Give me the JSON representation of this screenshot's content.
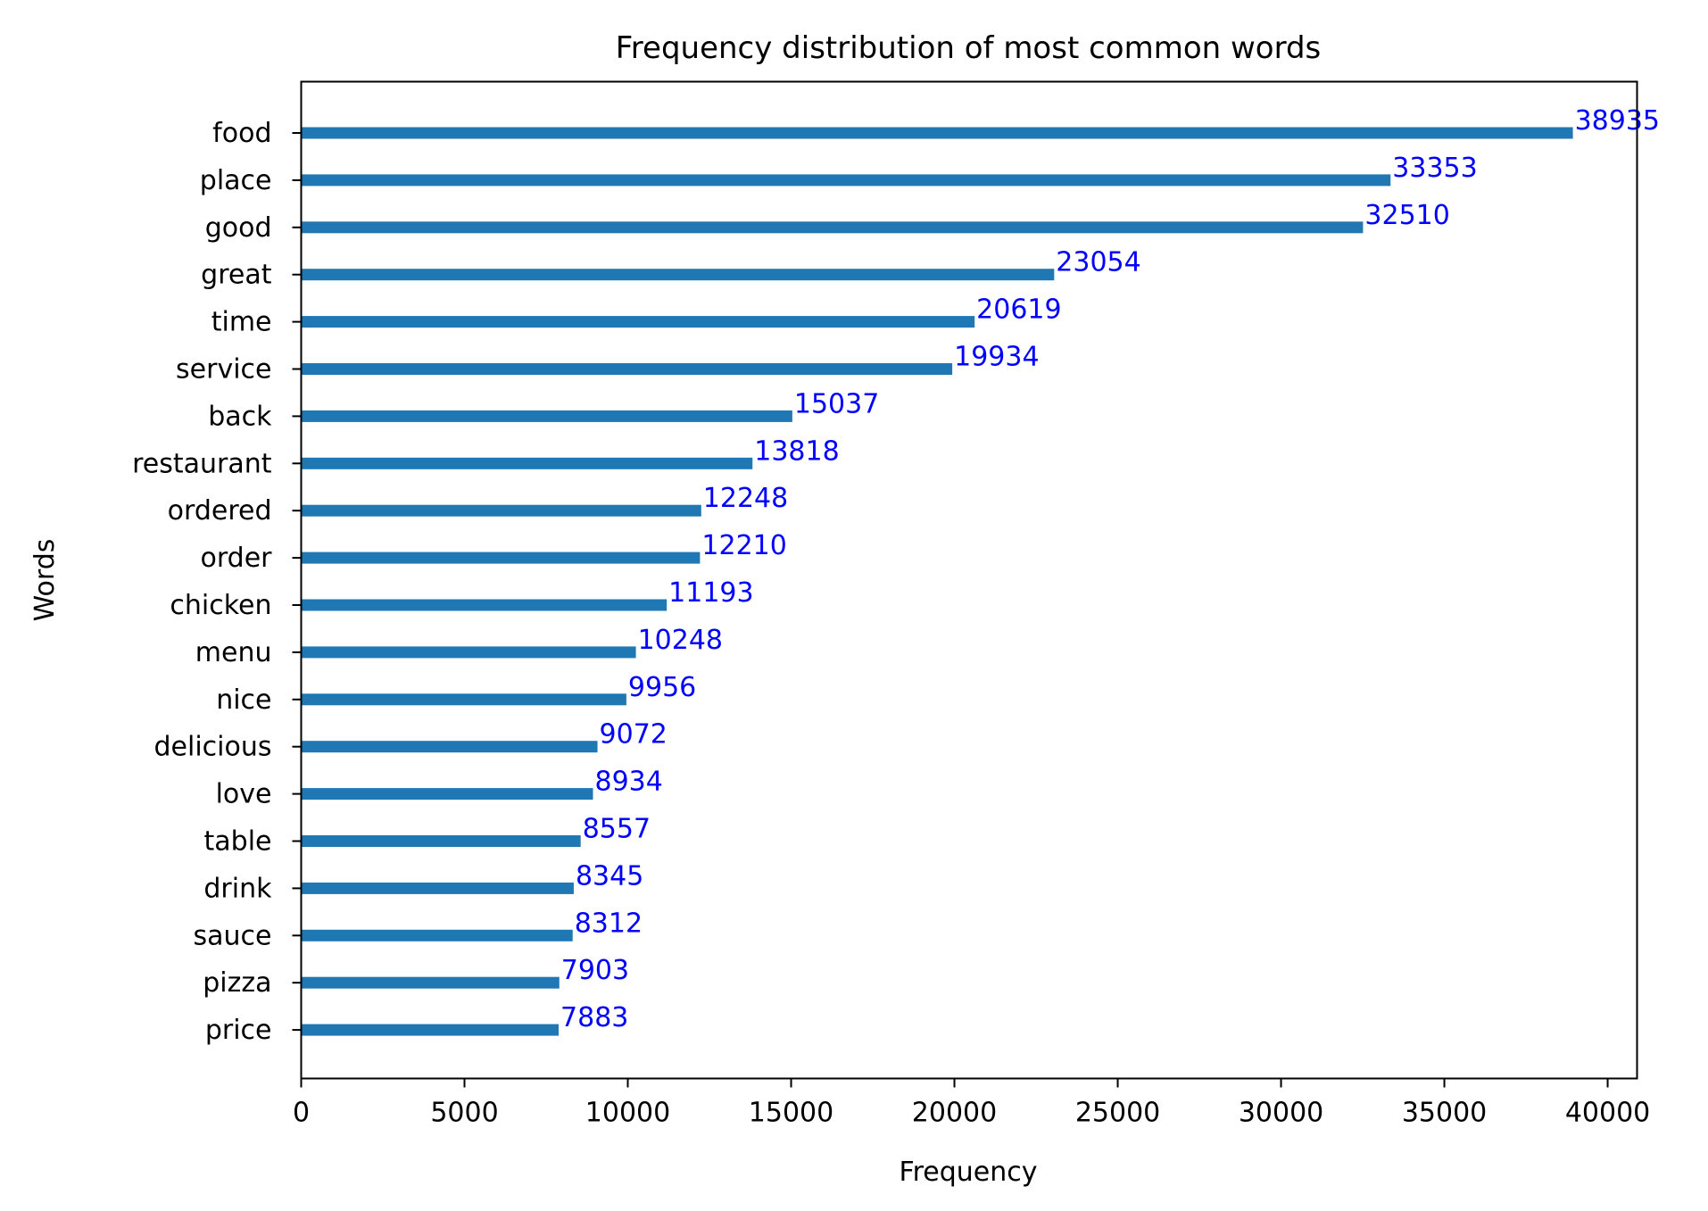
{
  "chart_data": {
    "type": "bar",
    "orientation": "horizontal",
    "title": "Frequency distribution of most common words",
    "xlabel": "Frequency",
    "ylabel": "Words",
    "xlim": [
      0,
      40900
    ],
    "xticks": [
      0,
      5000,
      10000,
      15000,
      20000,
      25000,
      30000,
      35000,
      40000
    ],
    "grid": false,
    "bar_color": "#1f77b4",
    "label_color": "#0000ff",
    "categories": [
      "food",
      "place",
      "good",
      "great",
      "time",
      "service",
      "back",
      "restaurant",
      "ordered",
      "order",
      "chicken",
      "menu",
      "nice",
      "delicious",
      "love",
      "table",
      "drink",
      "sauce",
      "pizza",
      "price"
    ],
    "values": [
      38935,
      33353,
      32510,
      23054,
      20619,
      19934,
      15037,
      13818,
      12248,
      12210,
      11193,
      10248,
      9956,
      9072,
      8934,
      8557,
      8345,
      8312,
      7903,
      7883
    ]
  }
}
